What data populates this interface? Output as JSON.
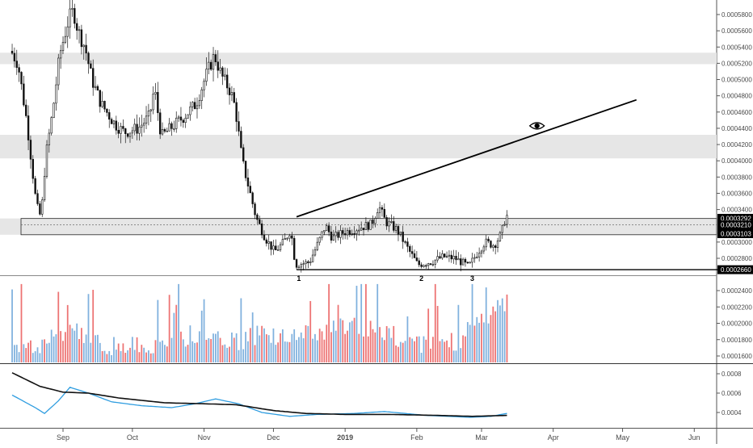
{
  "chart_data": [
    {
      "type": "candlestick",
      "symbol": "",
      "title": "",
      "ylim": [
        0.000257,
        0.000585
      ],
      "y_ticks": [
        "0.0005800",
        "0.0005600",
        "0.0005400",
        "0.0005200",
        "0.0005000",
        "0.0004800",
        "0.0004600",
        "0.0004400",
        "0.0004200",
        "0.0004000",
        "0.0003800",
        "0.0003600",
        "0.0003400",
        "0.0003000",
        "0.0002800"
      ],
      "price_badges": [
        {
          "label": "0.0003292",
          "value": 0.0003292
        },
        {
          "label": "0.0003210",
          "value": 0.000321
        },
        {
          "label": "0.0003103",
          "value": 0.0003103
        },
        {
          "label": "0.0002660",
          "value": 0.000266
        }
      ],
      "zones": [
        {
          "name": "resistance-zone-high",
          "from": 0.000519,
          "to": 0.000533
        },
        {
          "name": "resistance-zone-mid",
          "from": 0.000403,
          "to": 0.000432
        },
        {
          "name": "support-zone",
          "from": 0.000309,
          "to": 0.000329
        }
      ],
      "trendlines": [
        {
          "name": "rising-trendline",
          "from": [
            "2018-12-11",
            0.000331
          ],
          "to": [
            "2019-05-07",
            0.000475
          ]
        },
        {
          "name": "bottom-line",
          "from": [
            "2018-12-11",
            0.000266
          ],
          "to": [
            "2019-06-30",
            0.000266
          ]
        }
      ],
      "annotations": [
        {
          "text": "1",
          "date": "2018-12-12"
        },
        {
          "text": "2",
          "date": "2019-02-03"
        },
        {
          "text": "3",
          "date": "2019-02-25"
        }
      ],
      "eye_icon": {
        "date": "2019-03-25",
        "value": 0.000443
      },
      "x_ticks": [
        {
          "label": "Sep",
          "date": "2018-09-01"
        },
        {
          "label": "Oct",
          "date": "2018-10-01"
        },
        {
          "label": "Nov",
          "date": "2018-11-01"
        },
        {
          "label": "Dec",
          "date": "2018-12-01"
        },
        {
          "label": "2019",
          "date": "2019-01-01",
          "bold": true
        },
        {
          "label": "Feb",
          "date": "2019-02-01"
        },
        {
          "label": "Mar",
          "date": "2019-03-01"
        },
        {
          "label": "Apr",
          "date": "2019-04-01"
        },
        {
          "label": "May",
          "date": "2019-05-01"
        },
        {
          "label": "Jun",
          "date": "2019-06-01"
        }
      ],
      "colors": {
        "up": "#6aa3d8",
        "down": "#ea5a5a",
        "wick": "#1a1a1a",
        "zone": "#e6e6e6",
        "badge": "#000000"
      },
      "anchors": [
        {
          "date": "2018-08-10",
          "value": 0.000535
        },
        {
          "date": "2018-08-13",
          "value": 0.00052
        },
        {
          "date": "2018-08-17",
          "value": 0.000445
        },
        {
          "date": "2018-08-21",
          "value": 0.000345
        },
        {
          "date": "2018-08-23",
          "value": 0.00033
        },
        {
          "date": "2018-08-25",
          "value": 0.000405
        },
        {
          "date": "2018-08-28",
          "value": 0.00046
        },
        {
          "date": "2018-08-31",
          "value": 0.00053
        },
        {
          "date": "2018-09-04",
          "value": 0.000575
        },
        {
          "date": "2018-09-06",
          "value": 0.000585
        },
        {
          "date": "2018-09-08",
          "value": 0.00056
        },
        {
          "date": "2018-09-11",
          "value": 0.00054
        },
        {
          "date": "2018-09-14",
          "value": 0.0005
        },
        {
          "date": "2018-09-18",
          "value": 0.00047
        },
        {
          "date": "2018-09-24",
          "value": 0.000445
        },
        {
          "date": "2018-09-28",
          "value": 0.000435
        },
        {
          "date": "2018-10-04",
          "value": 0.00044
        },
        {
          "date": "2018-10-09",
          "value": 0.000455
        },
        {
          "date": "2018-10-11",
          "value": 0.00049
        },
        {
          "date": "2018-10-14",
          "value": 0.00043
        },
        {
          "date": "2018-10-18",
          "value": 0.00044
        },
        {
          "date": "2018-10-24",
          "value": 0.000455
        },
        {
          "date": "2018-10-29",
          "value": 0.00047
        },
        {
          "date": "2018-11-03",
          "value": 0.00051
        },
        {
          "date": "2018-11-06",
          "value": 0.00053
        },
        {
          "date": "2018-11-09",
          "value": 0.000505
        },
        {
          "date": "2018-11-13",
          "value": 0.000485
        },
        {
          "date": "2018-11-15",
          "value": 0.000465
        },
        {
          "date": "2018-11-18",
          "value": 0.0004
        },
        {
          "date": "2018-11-21",
          "value": 0.000365
        },
        {
          "date": "2018-11-24",
          "value": 0.00033
        },
        {
          "date": "2018-11-28",
          "value": 0.000305
        },
        {
          "date": "2018-12-02",
          "value": 0.000288
        },
        {
          "date": "2018-12-06",
          "value": 0.0003
        },
        {
          "date": "2018-12-09",
          "value": 0.000315
        },
        {
          "date": "2018-12-11",
          "value": 0.000272
        },
        {
          "date": "2018-12-17",
          "value": 0.000275
        },
        {
          "date": "2018-12-21",
          "value": 0.0003
        },
        {
          "date": "2018-12-24",
          "value": 0.00032
        },
        {
          "date": "2018-12-27",
          "value": 0.000305
        },
        {
          "date": "2019-01-01",
          "value": 0.000312
        },
        {
          "date": "2019-01-08",
          "value": 0.000318
        },
        {
          "date": "2019-01-13",
          "value": 0.000322
        },
        {
          "date": "2019-01-16",
          "value": 0.000345
        },
        {
          "date": "2019-01-19",
          "value": 0.000325
        },
        {
          "date": "2019-01-24",
          "value": 0.000315
        },
        {
          "date": "2019-01-29",
          "value": 0.00029
        },
        {
          "date": "2019-02-02",
          "value": 0.000272
        },
        {
          "date": "2019-02-08",
          "value": 0.000276
        },
        {
          "date": "2019-02-13",
          "value": 0.000282
        },
        {
          "date": "2019-02-18",
          "value": 0.00028
        },
        {
          "date": "2019-02-24",
          "value": 0.00027
        },
        {
          "date": "2019-02-28",
          "value": 0.000288
        },
        {
          "date": "2019-03-03",
          "value": 0.0003
        },
        {
          "date": "2019-03-07",
          "value": 0.000296
        },
        {
          "date": "2019-03-10",
          "value": 0.00031
        },
        {
          "date": "2019-03-12",
          "value": 0.000332
        }
      ]
    },
    {
      "type": "bar",
      "series_name": "volume",
      "ylim": [
        0.00015,
        0.00025
      ],
      "y_ticks": [
        "0.0002400",
        "0.0002200",
        "0.0002000",
        "0.0001800",
        "0.0001600"
      ],
      "anchors": [
        {
          "date": "2018-08-10",
          "value": 0.000166
        },
        {
          "date": "2018-08-25",
          "value": 0.000176
        },
        {
          "date": "2018-09-04",
          "value": 0.000195
        },
        {
          "date": "2018-09-10",
          "value": 0.000185
        },
        {
          "date": "2018-09-20",
          "value": 0.000172
        },
        {
          "date": "2018-10-10",
          "value": 0.00017
        },
        {
          "date": "2018-10-20",
          "value": 0.00018
        },
        {
          "date": "2018-11-01",
          "value": 0.000188
        },
        {
          "date": "2018-11-15",
          "value": 0.000175
        },
        {
          "date": "2018-11-25",
          "value": 0.000185
        },
        {
          "date": "2018-12-05",
          "value": 0.00018
        },
        {
          "date": "2018-12-20",
          "value": 0.00019
        },
        {
          "date": "2019-01-05",
          "value": 0.000195
        },
        {
          "date": "2019-01-20",
          "value": 0.000185
        },
        {
          "date": "2019-02-05",
          "value": 0.00017
        },
        {
          "date": "2019-02-20",
          "value": 0.000178
        },
        {
          "date": "2019-02-26",
          "value": 0.000205
        },
        {
          "date": "2019-03-05",
          "value": 0.00021
        },
        {
          "date": "2019-03-12",
          "value": 0.000225
        }
      ]
    },
    {
      "type": "line",
      "series": [
        {
          "color": "#2f9de0"
        },
        {
          "color": "#111111"
        }
      ],
      "ylim": [
        0.00032,
        0.00086
      ],
      "y_ticks": [
        "0.0008",
        "0.0006",
        "0.0004"
      ],
      "series_values": [
        [
          {
            "date": "2018-08-10",
            "value": 0.00058
          },
          {
            "date": "2018-08-20",
            "value": 0.00045
          },
          {
            "date": "2018-08-24",
            "value": 0.00039
          },
          {
            "date": "2018-08-30",
            "value": 0.00052
          },
          {
            "date": "2018-09-04",
            "value": 0.00066
          },
          {
            "date": "2018-09-12",
            "value": 0.0006
          },
          {
            "date": "2018-09-22",
            "value": 0.00051
          },
          {
            "date": "2018-10-05",
            "value": 0.00047
          },
          {
            "date": "2018-10-18",
            "value": 0.00045
          },
          {
            "date": "2018-10-28",
            "value": 0.00049
          },
          {
            "date": "2018-11-06",
            "value": 0.00054
          },
          {
            "date": "2018-11-16",
            "value": 0.00049
          },
          {
            "date": "2018-11-26",
            "value": 0.0004
          },
          {
            "date": "2018-12-08",
            "value": 0.00036
          },
          {
            "date": "2018-12-20",
            "value": 0.00038
          },
          {
            "date": "2019-01-05",
            "value": 0.00039
          },
          {
            "date": "2019-01-18",
            "value": 0.00041
          },
          {
            "date": "2019-02-05",
            "value": 0.00037
          },
          {
            "date": "2019-02-24",
            "value": 0.00035
          },
          {
            "date": "2019-03-05",
            "value": 0.00036
          },
          {
            "date": "2019-03-12",
            "value": 0.00039
          }
        ],
        [
          {
            "date": "2018-08-10",
            "value": 0.00081
          },
          {
            "date": "2018-08-22",
            "value": 0.00067
          },
          {
            "date": "2018-09-01",
            "value": 0.00061
          },
          {
            "date": "2018-09-12",
            "value": 0.0006
          },
          {
            "date": "2018-09-25",
            "value": 0.00055
          },
          {
            "date": "2018-10-15",
            "value": 0.0005
          },
          {
            "date": "2018-11-01",
            "value": 0.00049
          },
          {
            "date": "2018-11-15",
            "value": 0.00048
          },
          {
            "date": "2018-12-01",
            "value": 0.00042
          },
          {
            "date": "2018-12-15",
            "value": 0.00039
          },
          {
            "date": "2019-01-01",
            "value": 0.00038
          },
          {
            "date": "2019-01-20",
            "value": 0.00038
          },
          {
            "date": "2019-02-10",
            "value": 0.00037
          },
          {
            "date": "2019-02-25",
            "value": 0.00036
          },
          {
            "date": "2019-03-12",
            "value": 0.00037
          }
        ]
      ]
    }
  ]
}
